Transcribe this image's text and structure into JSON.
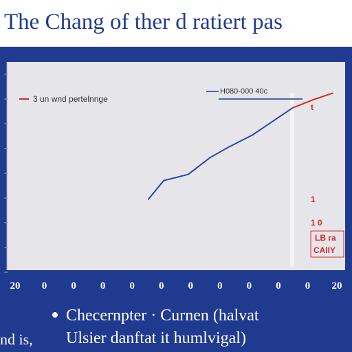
{
  "title": "The Chang of ther d ratiert pas",
  "footer": {
    "line1": "Checernpter · Curnen (halvat",
    "line2_left": "nd is,",
    "line2": "Ulsier danftat it humlvigal)"
  },
  "colors": {
    "primary": "#1f3a8f",
    "series": "#2b45a8",
    "projection": "#d42a2a",
    "plot_bg": "#e6e6ea"
  },
  "chart_data": {
    "type": "line",
    "title": "The Chang of ther d ratiert pas",
    "legend": [
      {
        "label": "3 un wnd pertelnnge",
        "color": "#d42a2a",
        "position": "top-left"
      },
      {
        "label": "H080-000 40c",
        "color": "#1f3a8f",
        "position": "top-right"
      }
    ],
    "xlabel": "",
    "ylabel": "",
    "x_ticks": [
      "20",
      "0",
      "0",
      "0",
      "0",
      "0",
      "0",
      "0",
      "0",
      "0",
      "0",
      "20"
    ],
    "xlim": [
      0,
      11
    ],
    "ylim": [
      0,
      10
    ],
    "grid": false,
    "series": [
      {
        "color": "#2b45a8",
        "x": [
          4.6,
          5.1,
          5.9,
          6.6,
          7.2,
          8.0,
          8.7,
          9.3
        ],
        "y": [
          3.4,
          4.3,
          4.6,
          5.4,
          5.9,
          6.5,
          7.2,
          7.8
        ]
      },
      {
        "color": "#d42a2a",
        "x": [
          9.3,
          10.0,
          10.6
        ],
        "y": [
          7.8,
          8.2,
          8.5
        ]
      }
    ],
    "annotations": [
      "t",
      "1",
      "1 0",
      "LB ra",
      "CAIIY"
    ]
  }
}
